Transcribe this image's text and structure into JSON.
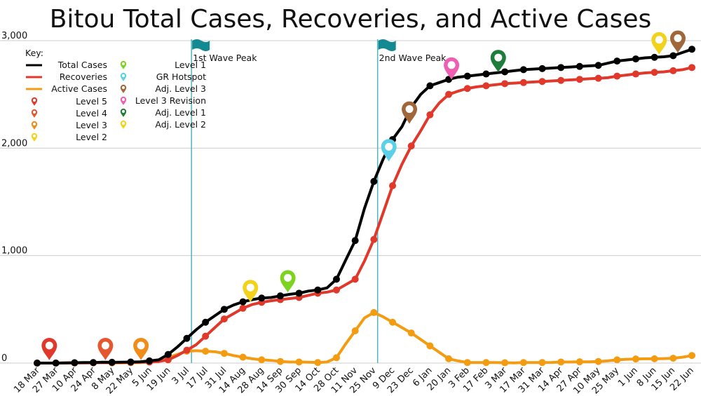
{
  "chart_data": {
    "type": "line",
    "title": "Bitou Total Cases, Recoveries, and Active Cases",
    "xlabel": "",
    "ylabel": "",
    "ylim": [
      0,
      3000
    ],
    "yticks": [
      "0",
      "1,000",
      "2,000",
      "3,000"
    ],
    "ytick_values": [
      0,
      1000,
      2000,
      3000
    ],
    "grid": "horizontal",
    "x_tick_labels": [
      "18 Mar",
      "27 Mar",
      "10 Apr",
      "24 Apr",
      "8 May",
      "22 May",
      "5 Jun",
      "19 Jun",
      "3 Jul",
      "17 Jul",
      "31 Jul",
      "14 Aug",
      "28 Aug",
      "14 Sep",
      "30 Sep",
      "14 Oct",
      "28 Oct",
      "11 Nov",
      "25 Nov",
      "9 Dec",
      "23 Dec",
      "6 Jan",
      "20 Jan",
      "3 Feb",
      "17 Feb",
      "3 Mar",
      "17 Mar",
      "31 Mar",
      "14 Apr",
      "27 Apr",
      "10 May",
      "25 May",
      "1 Jun",
      "8 Jun",
      "15 Jun",
      "22 Jun"
    ],
    "series": [
      {
        "name": "Total Cases",
        "color": "#000000",
        "x": [
          0,
          1,
          2,
          3,
          4,
          5,
          6,
          7,
          8,
          9,
          10,
          11,
          12,
          13,
          14,
          15,
          16,
          17,
          18,
          19,
          20,
          21,
          22,
          23,
          24,
          25,
          26,
          27,
          28,
          29,
          30,
          31,
          32,
          33,
          34,
          35,
          36,
          37,
          38,
          39,
          40,
          41,
          42,
          43,
          44,
          45,
          46,
          47,
          48,
          49,
          50,
          51,
          52,
          53,
          54,
          55,
          56,
          57,
          58,
          59,
          60,
          61,
          62,
          63,
          64,
          65,
          66,
          67,
          68,
          69,
          70
        ],
        "values": [
          0,
          0,
          0,
          2,
          3,
          5,
          5,
          8,
          7,
          8,
          10,
          12,
          20,
          30,
          80,
          150,
          230,
          310,
          380,
          440,
          500,
          540,
          570,
          590,
          605,
          610,
          625,
          640,
          650,
          670,
          680,
          700,
          780,
          960,
          1140,
          1440,
          1690,
          1900,
          2080,
          2200,
          2380,
          2500,
          2580,
          2610,
          2640,
          2660,
          2670,
          2680,
          2690,
          2700,
          2710,
          2720,
          2730,
          2735,
          2740,
          2745,
          2750,
          2755,
          2760,
          2765,
          2770,
          2790,
          2810,
          2820,
          2830,
          2840,
          2845,
          2850,
          2860,
          2890,
          2920
        ]
      },
      {
        "name": "Recoveries",
        "color": "#e0392b",
        "x": [
          0,
          1,
          2,
          3,
          4,
          5,
          6,
          7,
          8,
          9,
          10,
          11,
          12,
          13,
          14,
          15,
          16,
          17,
          18,
          19,
          20,
          21,
          22,
          23,
          24,
          25,
          26,
          27,
          28,
          29,
          30,
          31,
          32,
          33,
          34,
          35,
          36,
          37,
          38,
          39,
          40,
          41,
          42,
          43,
          44,
          45,
          46,
          47,
          48,
          49,
          50,
          51,
          52,
          53,
          54,
          55,
          56,
          57,
          58,
          59,
          60,
          61,
          62,
          63,
          64,
          65,
          66,
          67,
          68,
          69,
          70
        ],
        "values": [
          0,
          0,
          0,
          0,
          1,
          2,
          3,
          4,
          5,
          6,
          7,
          8,
          10,
          15,
          30,
          70,
          120,
          170,
          250,
          330,
          410,
          460,
          510,
          545,
          565,
          580,
          590,
          600,
          610,
          630,
          650,
          660,
          680,
          730,
          780,
          950,
          1150,
          1400,
          1650,
          1850,
          2020,
          2160,
          2310,
          2420,
          2500,
          2530,
          2555,
          2570,
          2580,
          2590,
          2600,
          2605,
          2610,
          2615,
          2620,
          2625,
          2630,
          2635,
          2640,
          2645,
          2650,
          2655,
          2670,
          2680,
          2690,
          2700,
          2705,
          2710,
          2720,
          2730,
          2750
        ]
      },
      {
        "name": "Active Cases",
        "color": "#f39c12",
        "x": [
          0,
          1,
          2,
          3,
          4,
          5,
          6,
          7,
          8,
          9,
          10,
          11,
          12,
          13,
          14,
          15,
          16,
          17,
          18,
          19,
          20,
          21,
          22,
          23,
          24,
          25,
          26,
          27,
          28,
          29,
          30,
          31,
          32,
          33,
          34,
          35,
          36,
          37,
          38,
          39,
          40,
          41,
          42,
          43,
          44,
          45,
          46,
          47,
          48,
          49,
          50,
          51,
          52,
          53,
          54,
          55,
          56,
          57,
          58,
          59,
          60,
          61,
          62,
          63,
          64,
          65,
          66,
          67,
          68,
          69,
          70
        ],
        "values": [
          0,
          0,
          0,
          2,
          2,
          3,
          2,
          4,
          2,
          2,
          3,
          4,
          10,
          15,
          50,
          80,
          110,
          115,
          110,
          105,
          90,
          70,
          55,
          40,
          30,
          25,
          15,
          10,
          10,
          8,
          5,
          10,
          50,
          180,
          300,
          420,
          470,
          430,
          380,
          330,
          280,
          220,
          160,
          100,
          40,
          20,
          5,
          5,
          5,
          5,
          3,
          2,
          5,
          5,
          5,
          6,
          10,
          10,
          12,
          12,
          15,
          20,
          30,
          35,
          38,
          40,
          40,
          42,
          45,
          55,
          70
        ]
      }
    ],
    "reference_lines": [
      {
        "label": "1st Wave Peak",
        "x": 16.5
      },
      {
        "label": "2nd Wave Peak",
        "x": 36.4
      }
    ],
    "markers": [
      {
        "level": "Level 5",
        "x": 1.3,
        "y": 0,
        "color": "#e0392b"
      },
      {
        "level": "Level 4",
        "x": 7.3,
        "y": 0,
        "color": "#e5572f"
      },
      {
        "level": "Level 3",
        "x": 11.1,
        "y": 0,
        "color": "#f08c1a"
      },
      {
        "level": "Level 2",
        "x": 22.8,
        "y": 540,
        "color": "#f2d21b"
      },
      {
        "level": "Level 1",
        "x": 26.8,
        "y": 630,
        "color": "#7ed321"
      },
      {
        "level": "GR Hotspot",
        "x": 37.6,
        "y": 1850,
        "color": "#5bd0e8"
      },
      {
        "level": "Adj. Level 3",
        "x": 39.8,
        "y": 2200,
        "color": "#a0673a"
      },
      {
        "level": "Level 3 Revision",
        "x": 44.3,
        "y": 2610,
        "color": "#ee5fb4"
      },
      {
        "level": "Adj. Level 1",
        "x": 49.3,
        "y": 2680,
        "color": "#1e7d3a"
      },
      {
        "level": "Adj. Level 2",
        "x": 66.5,
        "y": 2845,
        "color": "#f2d21b"
      },
      {
        "level": "Adj. Level 3",
        "x": 68.5,
        "y": 2860,
        "color": "#a0673a"
      }
    ],
    "legend": {
      "title": "Key:",
      "placement": "top-left",
      "lines": [
        {
          "label": "Total Cases",
          "color": "#000000"
        },
        {
          "label": "Recoveries",
          "color": "#e0392b"
        },
        {
          "label": "Active Cases",
          "color": "#f39c12"
        }
      ],
      "pins_left": [
        {
          "label": "Level 5",
          "color": "#e0392b"
        },
        {
          "label": "Level 4",
          "color": "#e5572f"
        },
        {
          "label": "Level 3",
          "color": "#f08c1a"
        },
        {
          "label": "Level 2",
          "color": "#f2d21b"
        }
      ],
      "pins_right": [
        {
          "label": "Level 1",
          "color": "#7ed321"
        },
        {
          "label": "GR Hotspot",
          "color": "#5bd0e8"
        },
        {
          "label": "Adj. Level 3",
          "color": "#a0673a"
        },
        {
          "label": "Level 3 Revision",
          "color": "#ee5fb4"
        },
        {
          "label": "Adj. Level 1",
          "color": "#1e7d3a"
        },
        {
          "label": "Adj. Level 2",
          "color": "#f2d21b"
        }
      ]
    },
    "colors": {
      "reference_line": "#4fb4bd",
      "flag": "#138a92",
      "grid": "#cccccc"
    }
  }
}
